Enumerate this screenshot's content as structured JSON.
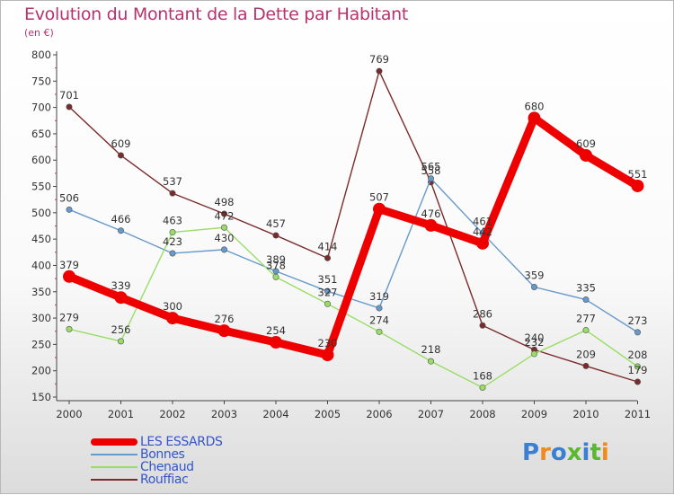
{
  "title": "Evolution du Montant de la Dette par Habitant",
  "subtitle": "(en €)",
  "logo": {
    "text": "Proxiti",
    "colors": [
      "#3a7fd0",
      "#f08a1c",
      "#3a7fd0",
      "#5cb830",
      "#3a7fd0",
      "#5cb830",
      "#f08a1c"
    ]
  },
  "chart_data": {
    "type": "line",
    "title": "Evolution du Montant de la Dette par Habitant",
    "ylabel": "(en €)",
    "xlabel": "",
    "x": [
      "2000",
      "2001",
      "2002",
      "2003",
      "2004",
      "2005",
      "2006",
      "2007",
      "2008",
      "2009",
      "2010",
      "2011"
    ],
    "yticks": [
      "150",
      "200",
      "250",
      "300",
      "350",
      "400",
      "450",
      "500",
      "550",
      "600",
      "650",
      "700",
      "750",
      "800"
    ],
    "ylim": [
      150,
      800
    ],
    "grid": false,
    "legend": "bottom-left",
    "series": [
      {
        "name": "LES ESSARDS",
        "color": "#ee0000",
        "values": [
          379,
          339,
          300,
          276,
          254,
          230,
          507,
          476,
          442,
          680,
          609,
          551
        ],
        "labels": [
          "379",
          "339",
          "300",
          "276",
          "254",
          "230",
          "507",
          "476",
          "442",
          "680",
          "609",
          "551"
        ]
      },
      {
        "name": "Bonnes",
        "color": "#6699cc",
        "values": [
          506,
          466,
          423,
          430,
          389,
          351,
          319,
          565,
          461,
          359,
          335,
          273
        ],
        "labels": [
          "506",
          "466",
          "423",
          "430",
          "389",
          "351",
          "319",
          "565",
          "461",
          "359",
          "335",
          "273"
        ]
      },
      {
        "name": "Chenaud",
        "color": "#99dd66",
        "values": [
          279,
          256,
          463,
          472,
          378,
          327,
          274,
          218,
          168,
          232,
          277,
          208
        ],
        "labels": [
          "279",
          "256",
          "463",
          "472",
          "378",
          "327",
          "274",
          "218",
          "168",
          "232",
          "277",
          "208"
        ]
      },
      {
        "name": "Rouffiac",
        "color": "#7a2c2c",
        "values": [
          701,
          609,
          537,
          498,
          457,
          414,
          769,
          558,
          286,
          240,
          209,
          179
        ],
        "labels": [
          "701",
          "609",
          "537",
          "498",
          "457",
          "414",
          "769",
          "558",
          "286",
          "240",
          "209",
          "179"
        ]
      }
    ]
  }
}
